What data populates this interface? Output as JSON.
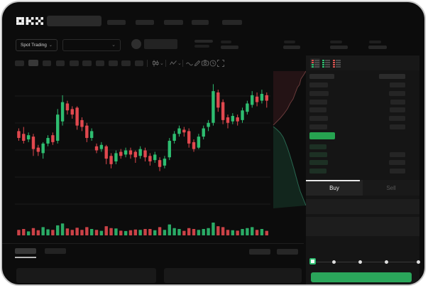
{
  "topnav": {
    "logo": "OKX"
  },
  "market_bar": {
    "pair_selector_label": "Spot Trading"
  },
  "trade_panel": {
    "buy_tab": "Buy",
    "sell_tab": "Sell"
  },
  "colors": {
    "up_green": "#2ebd70",
    "down_red": "#e0484e",
    "last_price_green": "#26a350",
    "buy_button_green": "#2aa55a",
    "device_bg": "#0c0c0c",
    "panel_bg": "#151515"
  },
  "chart_data": {
    "type": "candlestick",
    "title": "",
    "xlabel": "",
    "ylabel": "",
    "value_range": [
      0,
      100
    ],
    "grid": "horizontal",
    "up_color": "#2ebd70",
    "down_color": "#e0484e",
    "volume_max": 70,
    "candles_ohlcv": [
      [
        56,
        58,
        49,
        51,
        30
      ],
      [
        54,
        59,
        47,
        49,
        35
      ],
      [
        50,
        55,
        48,
        53,
        22
      ],
      [
        52,
        54,
        38,
        43,
        40
      ],
      [
        44,
        46,
        38,
        41,
        28
      ],
      [
        40,
        48,
        36,
        47,
        45
      ],
      [
        47,
        53,
        45,
        51,
        33
      ],
      [
        53,
        55,
        46,
        48,
        30
      ],
      [
        49,
        72,
        47,
        68,
        55
      ],
      [
        63,
        82,
        60,
        77,
        65
      ],
      [
        76,
        78,
        68,
        71,
        38
      ],
      [
        72,
        74,
        65,
        68,
        30
      ],
      [
        73,
        74,
        57,
        60,
        42
      ],
      [
        64,
        66,
        56,
        59,
        30
      ],
      [
        60,
        62,
        48,
        51,
        45
      ],
      [
        51,
        58,
        49,
        56,
        35
      ],
      [
        45,
        47,
        40,
        42,
        30
      ],
      [
        43,
        48,
        41,
        46,
        25
      ],
      [
        45,
        46,
        32,
        36,
        50
      ],
      [
        38,
        40,
        29,
        32,
        40
      ],
      [
        34,
        42,
        32,
        40,
        38
      ],
      [
        41,
        43,
        36,
        38,
        26
      ],
      [
        39,
        44,
        37,
        42,
        24
      ],
      [
        42,
        44,
        36,
        39,
        28
      ],
      [
        41,
        42,
        33,
        37,
        32
      ],
      [
        38,
        45,
        36,
        43,
        30
      ],
      [
        42,
        44,
        34,
        37,
        35
      ],
      [
        38,
        40,
        31,
        34,
        35
      ],
      [
        35,
        41,
        33,
        39,
        28
      ],
      [
        35,
        37,
        27,
        30,
        45
      ],
      [
        31,
        38,
        29,
        36,
        30
      ],
      [
        37,
        51,
        35,
        49,
        60
      ],
      [
        49,
        56,
        47,
        54,
        40
      ],
      [
        54,
        60,
        52,
        58,
        35
      ],
      [
        57,
        59,
        52,
        55,
        25
      ],
      [
        56,
        58,
        44,
        47,
        40
      ],
      [
        48,
        50,
        41,
        43,
        35
      ],
      [
        44,
        54,
        43,
        52,
        30
      ],
      [
        52,
        60,
        50,
        58,
        35
      ],
      [
        59,
        64,
        56,
        62,
        40
      ],
      [
        62,
        90,
        60,
        85,
        70
      ],
      [
        84,
        86,
        70,
        73,
        50
      ],
      [
        77,
        79,
        61,
        64,
        45
      ],
      [
        66,
        68,
        58,
        62,
        30
      ],
      [
        63,
        69,
        61,
        67,
        28
      ],
      [
        66,
        68,
        60,
        63,
        26
      ],
      [
        64,
        73,
        62,
        71,
        35
      ],
      [
        70,
        78,
        68,
        76,
        40
      ],
      [
        75,
        85,
        73,
        82,
        45
      ],
      [
        81,
        84,
        74,
        77,
        30
      ],
      [
        78,
        86,
        76,
        83,
        35
      ],
      [
        82,
        84,
        73,
        78,
        25
      ]
    ]
  },
  "depth": {
    "ask_fill": "#241315",
    "ask_line": "#7e4646",
    "bid_fill": "#12261d",
    "bid_line": "#2f7a5f",
    "ask_curve": [
      [
        428,
        97
      ],
      [
        425,
        102
      ],
      [
        421,
        108
      ],
      [
        419,
        116
      ],
      [
        416,
        120
      ],
      [
        413,
        128
      ],
      [
        410,
        136
      ],
      [
        406,
        142
      ],
      [
        402,
        150
      ],
      [
        397,
        157
      ],
      [
        392,
        163
      ],
      [
        387,
        168
      ],
      [
        382,
        173
      ]
    ],
    "bid_curve": [
      [
        382,
        175
      ],
      [
        387,
        179
      ],
      [
        392,
        184
      ],
      [
        396,
        190
      ],
      [
        399,
        197
      ],
      [
        402,
        205
      ],
      [
        405,
        214
      ],
      [
        408,
        224
      ],
      [
        411,
        234
      ],
      [
        414,
        245
      ],
      [
        417,
        256
      ],
      [
        420,
        266
      ],
      [
        424,
        276
      ],
      [
        428,
        286
      ]
    ]
  },
  "orderbook": {
    "header": {
      "left_w": 35,
      "right_w": 37
    },
    "asks": [
      [
        26,
        22
      ],
      [
        27,
        23
      ],
      [
        25,
        21
      ],
      [
        24,
        22
      ],
      [
        26,
        23
      ],
      [
        25,
        22
      ]
    ],
    "bids": [
      [
        24,
        0
      ],
      [
        25,
        22
      ],
      [
        26,
        23
      ],
      [
        24,
        22
      ]
    ],
    "last_price_block": {
      "width": 36,
      "height": 10,
      "color": "#26a350"
    }
  }
}
